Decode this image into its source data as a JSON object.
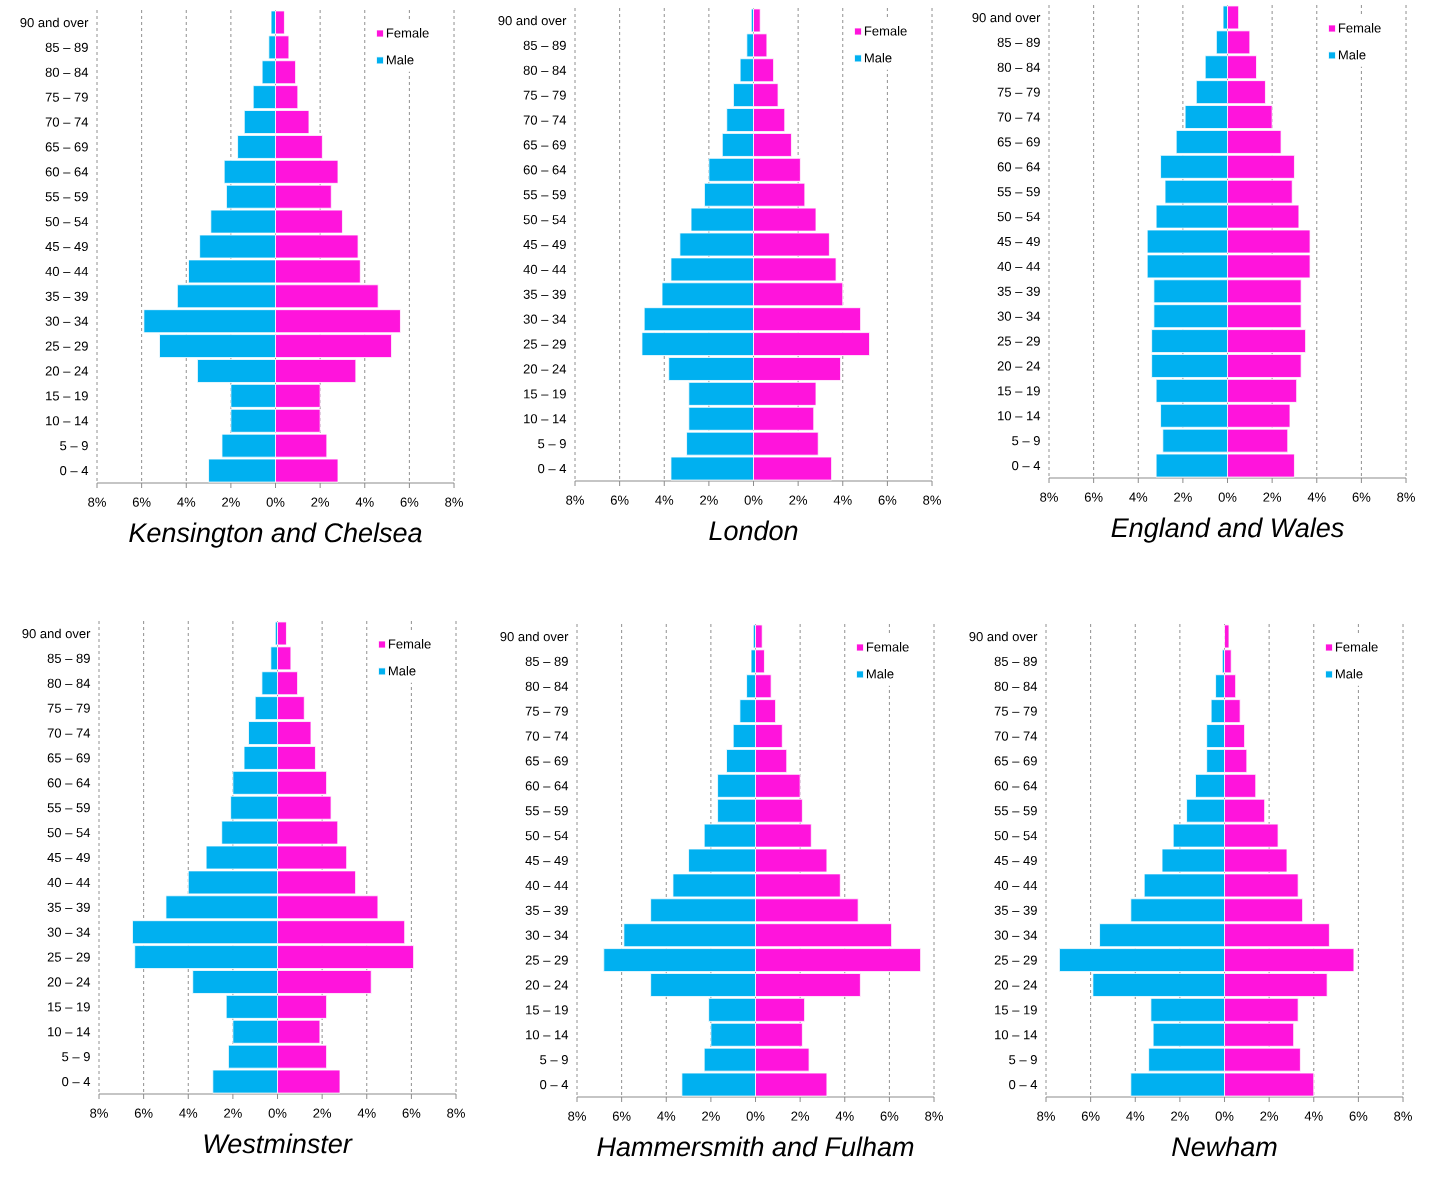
{
  "chart_data": [
    {
      "type": "bar",
      "orientation": "horizontal",
      "stacked": true,
      "title": "*Kensington and Chelsea*",
      "categories": [
        "90 and over",
        "85 – 89",
        "80 – 84",
        "75 – 79",
        "70 – 74",
        "65 – 69",
        "60 – 64",
        "55 – 59",
        "50 – 54",
        "45 – 49",
        "40 – 44",
        "35 – 39",
        "30 – 34",
        "25 – 29",
        "20 – 24",
        "15 – 19",
        "10 – 14",
        "5 – 9",
        "0 – 4"
      ],
      "series": [
        {
          "name": "Female",
          "color": "#ff14dc",
          "values": [
            0.4,
            0.6,
            0.9,
            1.0,
            1.5,
            2.1,
            2.8,
            2.5,
            3.0,
            3.7,
            3.8,
            4.6,
            5.6,
            5.2,
            3.6,
            2.0,
            2.0,
            2.3,
            2.8
          ]
        },
        {
          "name": "Male",
          "color": "#00b0f0",
          "values": [
            -0.2,
            -0.3,
            -0.6,
            -1.0,
            -1.4,
            -1.7,
            -2.3,
            -2.2,
            -2.9,
            -3.4,
            -3.9,
            -4.4,
            -5.9,
            -5.2,
            -3.5,
            -2.0,
            -2.0,
            -2.4,
            -3.0
          ]
        }
      ],
      "xlim": [
        -8,
        8
      ],
      "xticks": [
        {
          "value": -8,
          "label": "8%"
        },
        {
          "value": -6,
          "label": "6%"
        },
        {
          "value": -4,
          "label": "4%"
        },
        {
          "value": -2,
          "label": "2%"
        },
        {
          "value": 0,
          "label": "0%"
        },
        {
          "value": 2,
          "label": "2%"
        },
        {
          "value": 4,
          "label": "4%"
        },
        {
          "value": 6,
          "label": "6%"
        },
        {
          "value": 8,
          "label": "8%"
        }
      ],
      "grid": "x",
      "legend": "top right"
    },
    {
      "type": "bar",
      "orientation": "horizontal",
      "stacked": true,
      "title": "*London*",
      "categories": [
        "90 and over",
        "85 – 89",
        "80 – 84",
        "75 – 79",
        "70 – 74",
        "65 – 69",
        "60 – 64",
        "55 – 59",
        "50 – 54",
        "45 – 49",
        "40 – 44",
        "35 – 39",
        "30 – 34",
        "25 – 29",
        "20 – 24",
        "15 – 19",
        "10 – 14",
        "5 – 9",
        "0 – 4"
      ],
      "series": [
        {
          "name": "Female",
          "color": "#ff14dc",
          "values": [
            0.3,
            0.6,
            0.9,
            1.1,
            1.4,
            1.7,
            2.1,
            2.3,
            2.8,
            3.4,
            3.7,
            4.0,
            4.8,
            5.2,
            3.9,
            2.8,
            2.7,
            2.9,
            3.5
          ]
        },
        {
          "name": "Male",
          "color": "#00b0f0",
          "values": [
            -0.1,
            -0.3,
            -0.6,
            -0.9,
            -1.2,
            -1.4,
            -2.0,
            -2.2,
            -2.8,
            -3.3,
            -3.7,
            -4.1,
            -4.9,
            -5.0,
            -3.8,
            -2.9,
            -2.9,
            -3.0,
            -3.7
          ]
        }
      ],
      "xlim": [
        -8,
        8
      ],
      "xticks": [
        {
          "value": -8,
          "label": "8%"
        },
        {
          "value": -6,
          "label": "6%"
        },
        {
          "value": -4,
          "label": "4%"
        },
        {
          "value": -2,
          "label": "2%"
        },
        {
          "value": 0,
          "label": "0%"
        },
        {
          "value": 2,
          "label": "2%"
        },
        {
          "value": 4,
          "label": "4%"
        },
        {
          "value": 6,
          "label": "6%"
        },
        {
          "value": 8,
          "label": "8%"
        }
      ],
      "grid": "x",
      "legend": "top right"
    },
    {
      "type": "bar",
      "orientation": "horizontal",
      "stacked": true,
      "title": "*England and Wales*",
      "categories": [
        "90 and over",
        "85 – 89",
        "80 – 84",
        "75 – 79",
        "70 – 74",
        "65 – 69",
        "60 – 64",
        "55 – 59",
        "50 – 54",
        "45 – 49",
        "40 – 44",
        "35 – 39",
        "30 – 34",
        "25 – 29",
        "20 – 24",
        "15 – 19",
        "10 – 14",
        "5 – 9",
        "0 – 4"
      ],
      "series": [
        {
          "name": "Female",
          "color": "#ff14dc",
          "values": [
            0.5,
            1.0,
            1.3,
            1.7,
            2.0,
            2.4,
            3.0,
            2.9,
            3.2,
            3.7,
            3.7,
            3.3,
            3.3,
            3.5,
            3.3,
            3.1,
            2.8,
            2.7,
            3.0
          ]
        },
        {
          "name": "Male",
          "color": "#00b0f0",
          "values": [
            -0.2,
            -0.5,
            -1.0,
            -1.4,
            -1.9,
            -2.3,
            -3.0,
            -2.8,
            -3.2,
            -3.6,
            -3.6,
            -3.3,
            -3.3,
            -3.4,
            -3.4,
            -3.2,
            -3.0,
            -2.9,
            -3.2
          ]
        }
      ],
      "xlim": [
        -8,
        8
      ],
      "xticks": [
        {
          "value": -8,
          "label": "8%"
        },
        {
          "value": -6,
          "label": "6%"
        },
        {
          "value": -4,
          "label": "4%"
        },
        {
          "value": -2,
          "label": "2%"
        },
        {
          "value": 0,
          "label": "0%"
        },
        {
          "value": 2,
          "label": "2%"
        },
        {
          "value": 4,
          "label": "4%"
        },
        {
          "value": 6,
          "label": "6%"
        },
        {
          "value": 8,
          "label": "8%"
        }
      ],
      "grid": "x",
      "legend": "top right"
    },
    {
      "type": "bar",
      "orientation": "horizontal",
      "stacked": true,
      "title": "*Westminster*",
      "categories": [
        "90 and over",
        "85 – 89",
        "80 – 84",
        "75 – 79",
        "70 – 74",
        "65 – 69",
        "60 – 64",
        "55 – 59",
        "50 – 54",
        "45 – 49",
        "40 – 44",
        "35 – 39",
        "30 – 34",
        "25 – 29",
        "20 – 24",
        "15 – 19",
        "10 – 14",
        "5 – 9",
        "0 – 4"
      ],
      "series": [
        {
          "name": "Female",
          "color": "#ff14dc",
          "values": [
            0.4,
            0.6,
            0.9,
            1.2,
            1.5,
            1.7,
            2.2,
            2.4,
            2.7,
            3.1,
            3.5,
            4.5,
            5.7,
            6.1,
            4.2,
            2.2,
            1.9,
            2.2,
            2.8
          ]
        },
        {
          "name": "Male",
          "color": "#00b0f0",
          "values": [
            -0.1,
            -0.3,
            -0.7,
            -1.0,
            -1.3,
            -1.5,
            -2.0,
            -2.1,
            -2.5,
            -3.2,
            -4.0,
            -5.0,
            -6.5,
            -6.4,
            -3.8,
            -2.3,
            -2.0,
            -2.2,
            -2.9
          ]
        }
      ],
      "xlim": [
        -8,
        8
      ],
      "xticks": [
        {
          "value": -8,
          "label": "8%"
        },
        {
          "value": -6,
          "label": "6%"
        },
        {
          "value": -4,
          "label": "4%"
        },
        {
          "value": -2,
          "label": "2%"
        },
        {
          "value": 0,
          "label": "0%"
        },
        {
          "value": 2,
          "label": "2%"
        },
        {
          "value": 4,
          "label": "4%"
        },
        {
          "value": 6,
          "label": "6%"
        },
        {
          "value": 8,
          "label": "8%"
        }
      ],
      "grid": "x",
      "legend": "top right"
    },
    {
      "type": "bar",
      "orientation": "horizontal",
      "stacked": true,
      "title": "*Hammersmith and Fulham*",
      "categories": [
        "90 and over",
        "85 – 89",
        "80 – 84",
        "75 – 79",
        "70 – 74",
        "65 – 69",
        "60 – 64",
        "55 – 59",
        "50 – 54",
        "45 – 49",
        "40 – 44",
        "35 – 39",
        "30 – 34",
        "25 – 29",
        "20 – 24",
        "15 – 19",
        "10 – 14",
        "5 – 9",
        "0 – 4"
      ],
      "series": [
        {
          "name": "Female",
          "color": "#ff14dc",
          "values": [
            0.3,
            0.4,
            0.7,
            0.9,
            1.2,
            1.4,
            2.0,
            2.1,
            2.5,
            3.2,
            3.8,
            4.6,
            6.1,
            7.4,
            4.7,
            2.2,
            2.1,
            2.4,
            3.2
          ]
        },
        {
          "name": "Male",
          "color": "#00b0f0",
          "values": [
            -0.1,
            -0.2,
            -0.4,
            -0.7,
            -1.0,
            -1.3,
            -1.7,
            -1.7,
            -2.3,
            -3.0,
            -3.7,
            -4.7,
            -5.9,
            -6.8,
            -4.7,
            -2.1,
            -2.0,
            -2.3,
            -3.3
          ]
        }
      ],
      "xlim": [
        -8,
        8
      ],
      "xticks": [
        {
          "value": -8,
          "label": "8%"
        },
        {
          "value": -6,
          "label": "6%"
        },
        {
          "value": -4,
          "label": "4%"
        },
        {
          "value": -2,
          "label": "2%"
        },
        {
          "value": 0,
          "label": "0%"
        },
        {
          "value": 2,
          "label": "2%"
        },
        {
          "value": 4,
          "label": "4%"
        },
        {
          "value": 6,
          "label": "6%"
        },
        {
          "value": 8,
          "label": "8%"
        }
      ],
      "grid": "x",
      "legend": "top right"
    },
    {
      "type": "bar",
      "orientation": "horizontal",
      "stacked": true,
      "title": "*Newham*",
      "categories": [
        "90 and over",
        "85 – 89",
        "80 – 84",
        "75 – 79",
        "70 – 74",
        "65 – 69",
        "60 – 64",
        "55 – 59",
        "50 – 54",
        "45 – 49",
        "40 – 44",
        "35 – 39",
        "30 – 34",
        "25 – 29",
        "20 – 24",
        "15 – 19",
        "10 – 14",
        "5 – 9",
        "0 – 4"
      ],
      "series": [
        {
          "name": "Female",
          "color": "#ff14dc",
          "values": [
            0.2,
            0.3,
            0.5,
            0.7,
            0.9,
            1.0,
            1.4,
            1.8,
            2.4,
            2.8,
            3.3,
            3.5,
            4.7,
            5.8,
            4.6,
            3.3,
            3.1,
            3.4,
            4.0
          ]
        },
        {
          "name": "Male",
          "color": "#00b0f0",
          "values": [
            null,
            -0.1,
            -0.4,
            -0.6,
            -0.8,
            -0.8,
            -1.3,
            -1.7,
            -2.3,
            -2.8,
            -3.6,
            -4.2,
            -5.6,
            -7.4,
            -5.9,
            -3.3,
            -3.2,
            -3.4,
            -4.2
          ]
        }
      ],
      "xlim": [
        -8,
        8
      ],
      "xticks": [
        {
          "value": -8,
          "label": "8%"
        },
        {
          "value": -6,
          "label": "6%"
        },
        {
          "value": -4,
          "label": "4%"
        },
        {
          "value": -2,
          "label": "2%"
        },
        {
          "value": 0,
          "label": "0%"
        },
        {
          "value": 2,
          "label": "2%"
        },
        {
          "value": 4,
          "label": "4%"
        },
        {
          "value": 6,
          "label": "6%"
        },
        {
          "value": 8,
          "label": "8%"
        }
      ],
      "grid": "x",
      "legend": "top right"
    }
  ]
}
